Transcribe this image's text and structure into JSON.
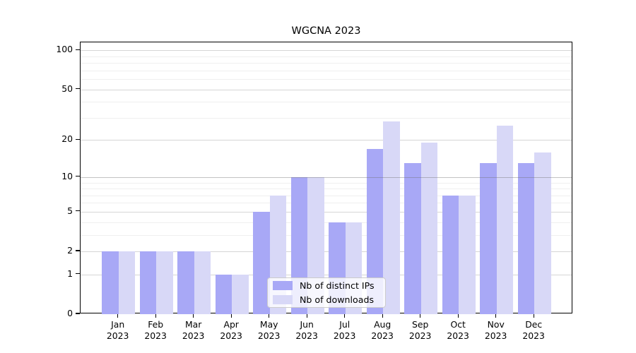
{
  "chart_data": {
    "type": "bar",
    "title": "WGCNA 2023",
    "categories": [
      "Jan 2023",
      "Feb 2023",
      "Mar 2023",
      "Apr 2023",
      "May 2023",
      "Jun 2023",
      "Jul 2023",
      "Aug 2023",
      "Sep 2023",
      "Oct 2023",
      "Nov 2023",
      "Dec 2023"
    ],
    "series": [
      {
        "name": "Nb of distinct IPs",
        "color": "#a8a8f6",
        "values": [
          2,
          2,
          2,
          1,
          5,
          10,
          4,
          17,
          13,
          7,
          13,
          13
        ]
      },
      {
        "name": "Nb of downloads",
        "color": "#d8d8f7",
        "values": [
          2,
          2,
          2,
          1,
          7,
          10,
          4,
          28,
          19,
          7,
          26,
          16
        ]
      }
    ],
    "xlabel": "",
    "ylabel": "",
    "yscale": "log10(value+1)",
    "yticks": [
      0,
      1,
      2,
      5,
      10,
      20,
      50,
      100
    ],
    "minor_gridlines": [
      3,
      4,
      6,
      7,
      8,
      9,
      30,
      40,
      60,
      70,
      80,
      90
    ],
    "ylim": [
      0,
      115
    ],
    "grid": "horizontal",
    "legend_position": "inside lower center",
    "colors": {
      "spine": "#000000",
      "major_grid": "#d6d6d6",
      "minor_grid": "#efefef",
      "highlight_grid_value": 10,
      "highlight_grid": "rgba(105,105,105,0.40)",
      "background": "#ffffff"
    }
  }
}
